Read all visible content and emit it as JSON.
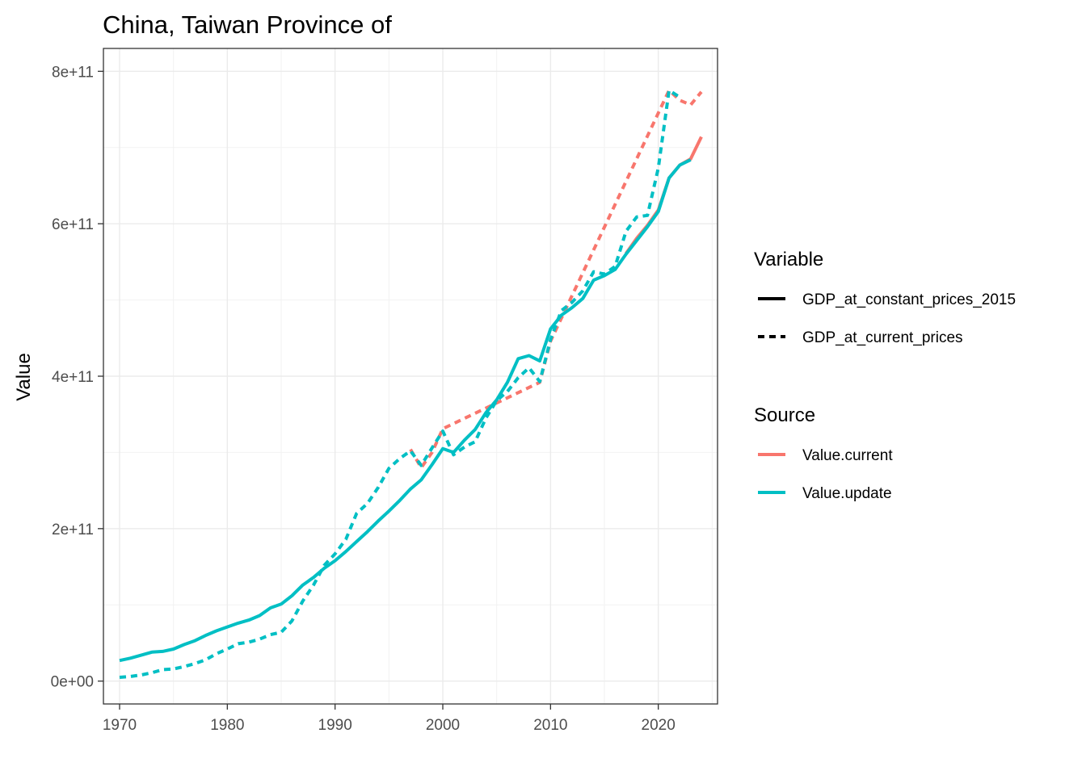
{
  "chart_data": {
    "type": "line",
    "title": "China, Taiwan Province of",
    "xlabel": "",
    "ylabel": "Value",
    "xlim": [
      1968.5,
      2025.5
    ],
    "ylim": [
      -30000000000,
      830000000000
    ],
    "x_ticks": [
      1970,
      1980,
      1990,
      2000,
      2010,
      2020
    ],
    "x_tick_labels": [
      "1970",
      "1980",
      "1990",
      "2000",
      "2010",
      "2020"
    ],
    "y_ticks": [
      0,
      200000000000,
      400000000000,
      600000000000,
      800000000000
    ],
    "y_tick_labels": [
      "0e+00",
      "2e+11",
      "4e+11",
      "6e+11",
      "8e+11"
    ],
    "grid": true,
    "legend": {
      "position": "right",
      "variable": {
        "title": "Variable",
        "entries": [
          {
            "label": "GDP_at_constant_prices_2015",
            "linetype": "solid"
          },
          {
            "label": "GDP_at_current_prices",
            "linetype": "dashed"
          }
        ]
      },
      "source": {
        "title": "Source",
        "entries": [
          {
            "label": "Value.current",
            "color": "#F8766D"
          },
          {
            "label": "Value.update",
            "color": "#00BFC4"
          }
        ]
      }
    },
    "series": [
      {
        "variable": "GDP_at_constant_prices_2015",
        "source": "Value.current",
        "color": "#F8766D",
        "linetype": "solid",
        "x": [
          2017,
          2018,
          2019,
          2020,
          2021,
          2022,
          2023,
          2024
        ],
        "y": [
          561000000000,
          581000000000,
          598000000000,
          618000000000,
          660000000000,
          677000000000,
          685000000000,
          714000000000
        ]
      },
      {
        "variable": "GDP_at_current_prices",
        "source": "Value.current",
        "color": "#F8766D",
        "linetype": "dashed",
        "x": [
          1997,
          1998,
          1999,
          2000,
          2009,
          2010,
          2021,
          2022,
          2023,
          2024
        ],
        "y": [
          304000000000,
          280000000000,
          300000000000,
          331000000000,
          392000000000,
          446000000000,
          775000000000,
          762000000000,
          756000000000,
          773000000000
        ]
      },
      {
        "variable": "GDP_at_constant_prices_2015",
        "source": "Value.update",
        "color": "#00BFC4",
        "linetype": "solid",
        "x": [
          1970,
          1971,
          1972,
          1973,
          1974,
          1975,
          1976,
          1977,
          1978,
          1979,
          1980,
          1981,
          1982,
          1983,
          1984,
          1985,
          1986,
          1987,
          1988,
          1989,
          1990,
          1991,
          1992,
          1993,
          1994,
          1995,
          1996,
          1997,
          1998,
          1999,
          2000,
          2001,
          2002,
          2003,
          2004,
          2005,
          2006,
          2007,
          2008,
          2009,
          2010,
          2011,
          2012,
          2013,
          2014,
          2015,
          2016,
          2017,
          2018,
          2019,
          2020,
          2021,
          2022,
          2023
        ],
        "y": [
          27000000000,
          30000000000,
          34000000000,
          38000000000,
          39000000000,
          42000000000,
          48000000000,
          53000000000,
          60000000000,
          66000000000,
          71000000000,
          76000000000,
          80000000000,
          86000000000,
          96000000000,
          101000000000,
          112000000000,
          126000000000,
          136000000000,
          148000000000,
          158000000000,
          170000000000,
          183000000000,
          196000000000,
          210000000000,
          223000000000,
          237000000000,
          252000000000,
          264000000000,
          284000000000,
          305000000000,
          300000000000,
          316000000000,
          330000000000,
          352000000000,
          369000000000,
          392000000000,
          423000000000,
          427000000000,
          420000000000,
          462000000000,
          480000000000,
          490000000000,
          502000000000,
          526000000000,
          532000000000,
          540000000000,
          560000000000,
          578000000000,
          596000000000,
          616000000000,
          660000000000,
          677000000000,
          684000000000
        ]
      },
      {
        "variable": "GDP_at_current_prices",
        "source": "Value.update",
        "color": "#00BFC4",
        "linetype": "dashed",
        "x": [
          1970,
          1971,
          1972,
          1973,
          1974,
          1975,
          1976,
          1977,
          1978,
          1979,
          1980,
          1981,
          1982,
          1983,
          1984,
          1985,
          1986,
          1987,
          1988,
          1989,
          1990,
          1991,
          1992,
          1993,
          1994,
          1995,
          1996,
          1997,
          1998,
          1999,
          2000,
          2001,
          2002,
          2003,
          2004,
          2005,
          2006,
          2007,
          2008,
          2009,
          2010,
          2011,
          2012,
          2013,
          2014,
          2015,
          2016,
          2017,
          2018,
          2019,
          2020,
          2021,
          2022
        ],
        "y": [
          5000000000,
          6000000000,
          8000000000,
          11000000000,
          15000000000,
          16000000000,
          19000000000,
          23000000000,
          28000000000,
          36000000000,
          42000000000,
          49000000000,
          51000000000,
          55000000000,
          61000000000,
          64000000000,
          79000000000,
          105000000000,
          126000000000,
          152000000000,
          167000000000,
          186000000000,
          220000000000,
          233000000000,
          254000000000,
          279000000000,
          292000000000,
          302000000000,
          283000000000,
          306000000000,
          328000000000,
          297000000000,
          307000000000,
          314000000000,
          345000000000,
          368000000000,
          380000000000,
          398000000000,
          411000000000,
          393000000000,
          448000000000,
          486000000000,
          497000000000,
          512000000000,
          537000000000,
          534000000000,
          544000000000,
          590000000000,
          609000000000,
          611000000000,
          673000000000,
          775000000000,
          766000000000
        ]
      }
    ]
  }
}
